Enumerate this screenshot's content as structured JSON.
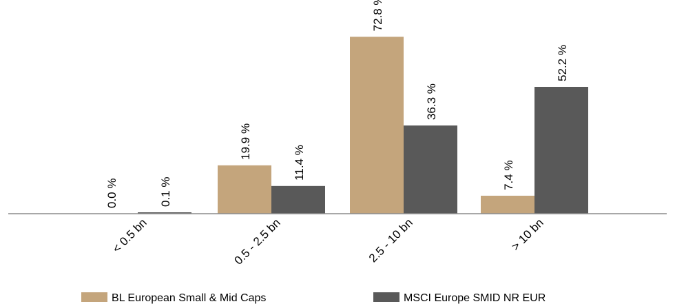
{
  "chart_data": {
    "type": "bar",
    "categories": [
      "< 0.5 bn",
      "0.5 - 2.5 bn",
      "2.5 - 10 bn",
      "> 10 bn"
    ],
    "series": [
      {
        "name": "BL European Small & Mid Caps",
        "values": [
          0.0,
          19.9,
          72.8,
          7.4
        ],
        "labels": [
          "0.0 %",
          "19.9 %",
          "72.8 %",
          "7.4 %"
        ],
        "color": "#c4a57c"
      },
      {
        "name": "MSCI Europe SMID NR EUR",
        "values": [
          0.1,
          11.4,
          36.3,
          52.2
        ],
        "labels": [
          "0.1 %",
          "11.4 %",
          "36.3 %",
          "52.2 %"
        ],
        "color": "#595959"
      }
    ],
    "ylim": [
      0,
      80
    ],
    "grid": false,
    "legend_position": "bottom",
    "axis_color": "#8c8c8c"
  }
}
